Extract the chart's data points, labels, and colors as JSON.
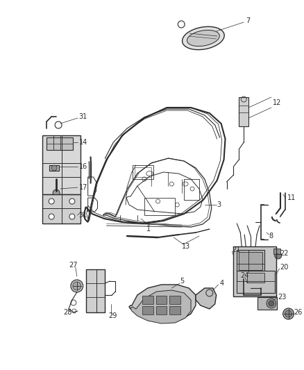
{
  "bg_color": "#ffffff",
  "line_color": "#2a2a2a",
  "label_color": "#1a1a1a",
  "fig_width": 4.38,
  "fig_height": 5.33,
  "dpi": 100
}
